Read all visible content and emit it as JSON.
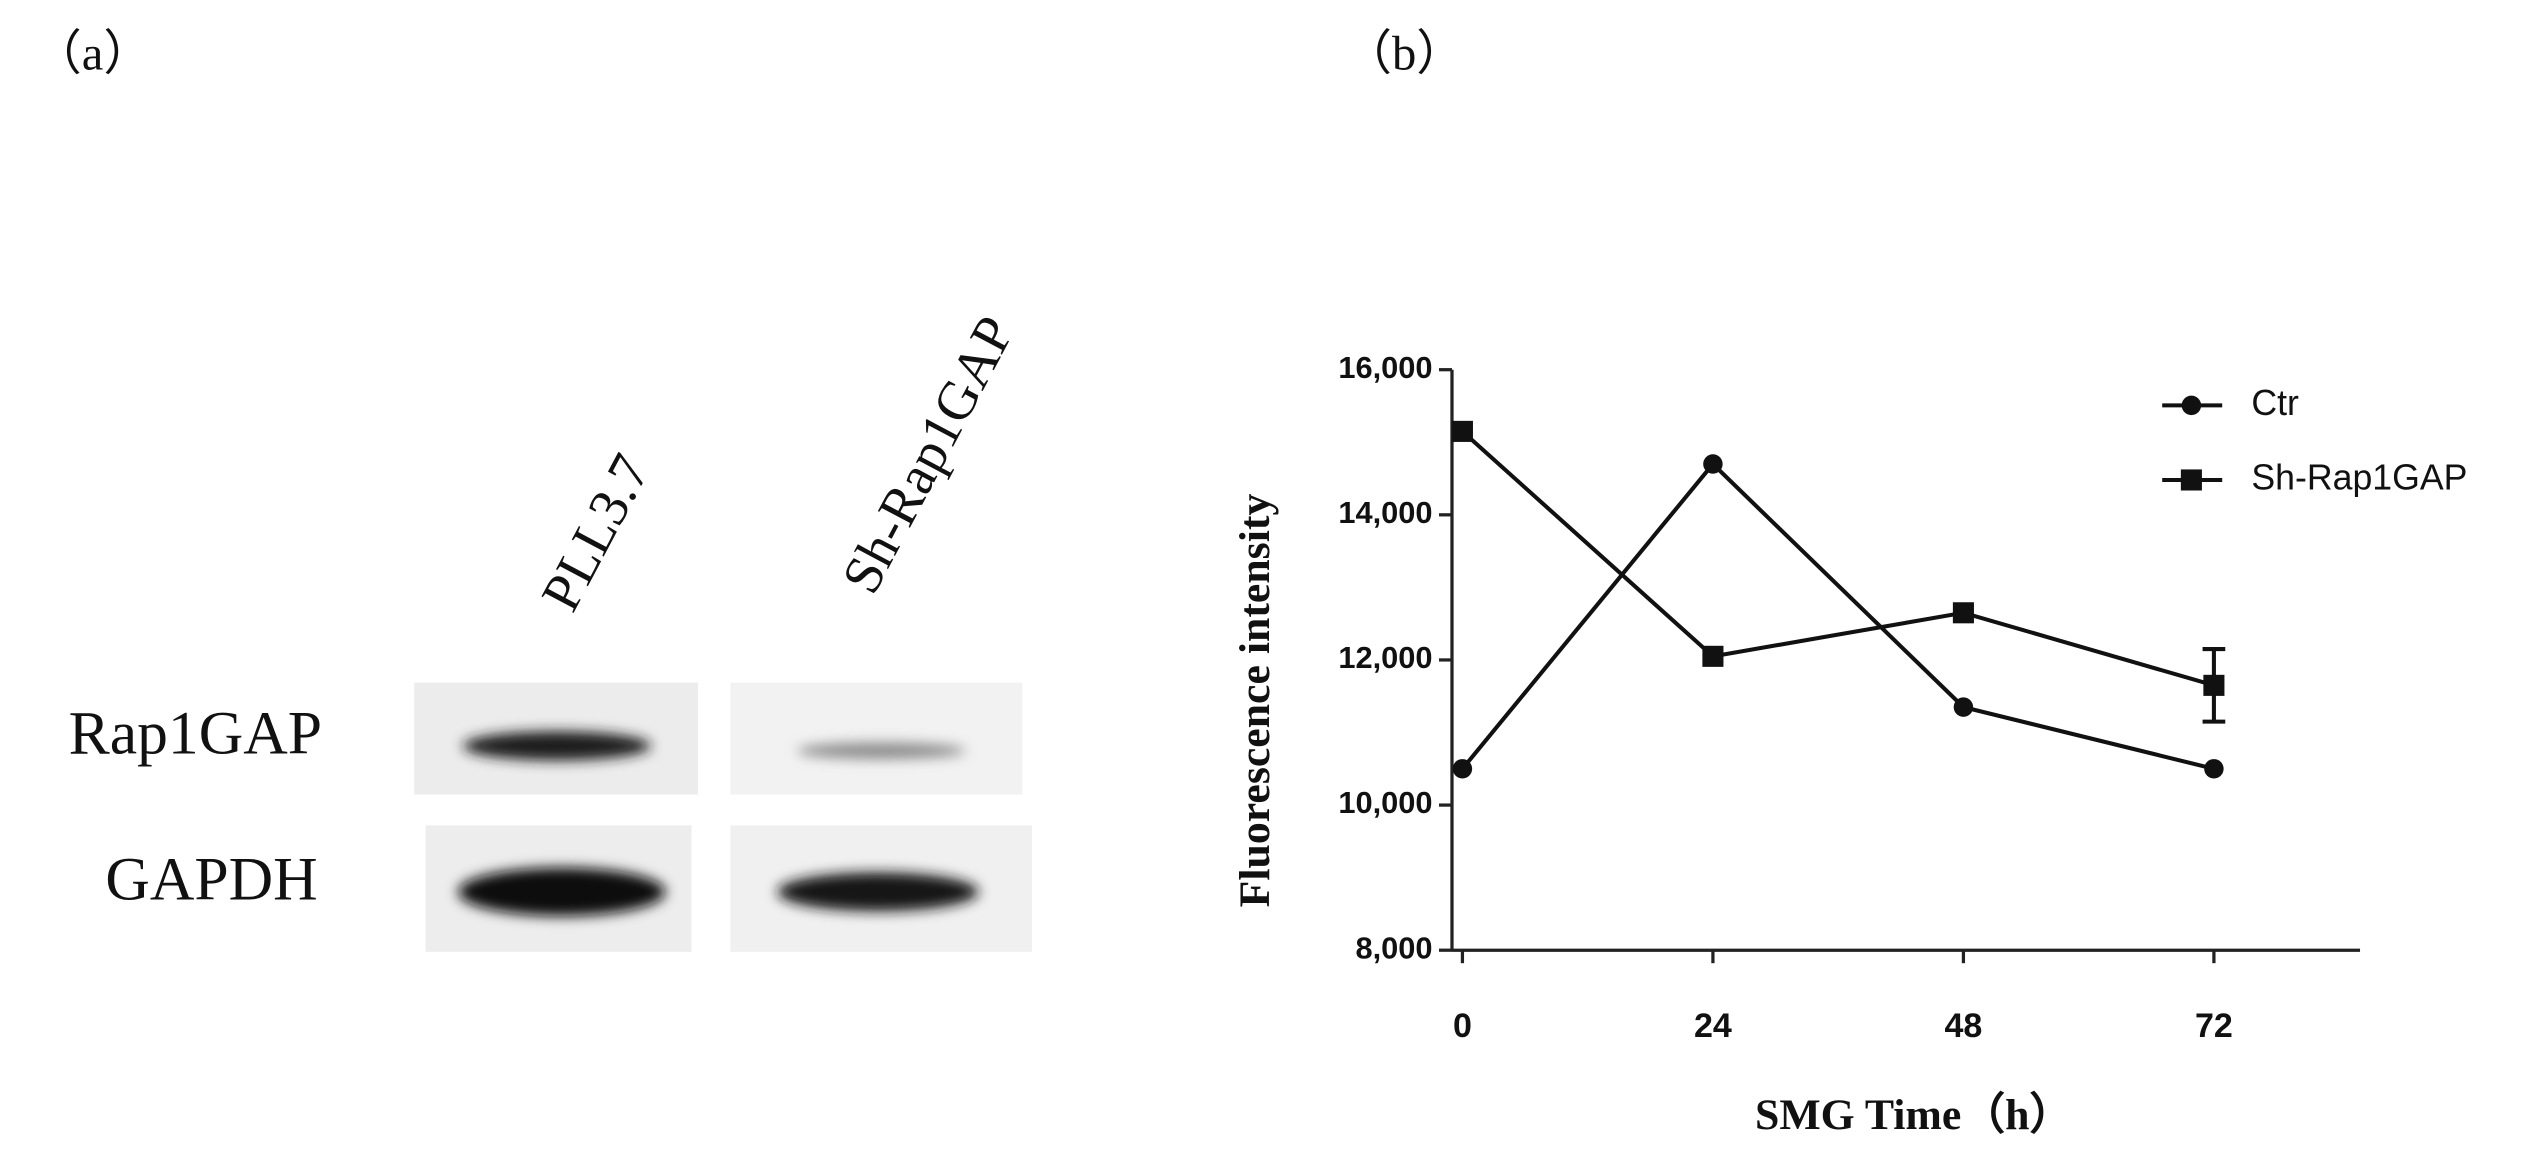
{
  "panel_labels": [
    "（a）",
    "（b）"
  ],
  "blot": {
    "lanes": [
      "PLL3.7",
      "Sh-Rap1GAP"
    ],
    "rows": [
      "Rap1GAP",
      "GAPDH"
    ]
  },
  "chart_data": {
    "type": "line",
    "x_label": "SMG Time（h）",
    "y_label": "Fluorescence intensity",
    "x": [
      0,
      24,
      48,
      72
    ],
    "series": [
      {
        "name": "Ctr",
        "color": "#111111",
        "marker": "circle",
        "values": [
          10500,
          14700,
          11350,
          10500
        ]
      },
      {
        "name": "Sh-Rap1GAP",
        "color": "#111111",
        "marker": "square",
        "values": [
          15150,
          12050,
          12650,
          11650
        ],
        "errors": [
          null,
          null,
          null,
          500
        ]
      }
    ],
    "xlim": [
      -1,
      86
    ],
    "xticks": [
      0,
      24,
      48,
      72
    ],
    "ylim": [
      8000,
      16000
    ],
    "yticks": [
      {
        "value": 8000,
        "label": "8,000"
      },
      {
        "value": 10000,
        "label": "10,000"
      },
      {
        "value": 12000,
        "label": "12,000"
      },
      {
        "value": 14000,
        "label": "14,000"
      },
      {
        "value": 16000,
        "label": "16,000"
      }
    ],
    "legend": "top-right"
  }
}
